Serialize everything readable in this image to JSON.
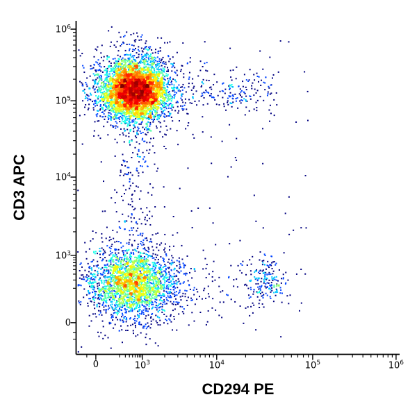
{
  "figure": {
    "background": "#ffffff",
    "title": ""
  },
  "chart_data": {
    "type": "scatter",
    "subtype": "flow-cytometry-pseudocolor-density-dot-plot",
    "title": "",
    "xlabel": "CD294 PE",
    "ylabel": "CD3 APC",
    "x_scale": "biexponential-log",
    "y_scale": "biexponential-log",
    "axis_tick_values": [
      0,
      1000,
      10000,
      100000,
      1000000
    ],
    "grid": false,
    "legend": false,
    "colormap": "jet-density (blue=low, red=high)",
    "x_ticks": [
      {
        "label_base": "0",
        "label_exp": "",
        "u": 0.06
      },
      {
        "label_base": "10",
        "label_exp": "3",
        "u": 0.204
      },
      {
        "label_base": "10",
        "label_exp": "4",
        "u": 0.434
      },
      {
        "label_base": "10",
        "label_exp": "5",
        "u": 0.731
      },
      {
        "label_base": "10",
        "label_exp": "6",
        "u": 0.989
      }
    ],
    "y_ticks": [
      {
        "label_base": "0",
        "label_exp": "",
        "u": 0.094
      },
      {
        "label_base": "10",
        "label_exp": "3",
        "u": 0.296
      },
      {
        "label_base": "10",
        "label_exp": "4",
        "u": 0.531
      },
      {
        "label_base": "10",
        "label_exp": "5",
        "u": 0.76
      },
      {
        "label_base": "10",
        "label_exp": "6",
        "u": 0.975
      }
    ],
    "seed": 7,
    "populations": [
      {
        "name": "CD3+ CD294- T-cell cluster (dense, red core)",
        "shape": "gauss",
        "ux": 0.183,
        "uy": 0.792,
        "sx": 0.05,
        "sy": 0.042,
        "n": 4500,
        "x_center_value": 800,
        "y_center_value": 140000
      },
      {
        "name": "CD3+ cluster sparse halo",
        "shape": "gauss",
        "ux": 0.183,
        "uy": 0.79,
        "sx": 0.088,
        "sy": 0.075,
        "n": 550
      },
      {
        "name": "CD3- CD294- cluster (dense, green-yellow core)",
        "shape": "gauss",
        "ux": 0.175,
        "uy": 0.212,
        "sx": 0.062,
        "sy": 0.05,
        "n": 2200,
        "x_center_value": 800,
        "y_center_value": 400
      },
      {
        "name": "CD3- cluster sparse halo",
        "shape": "gauss",
        "ux": 0.175,
        "uy": 0.215,
        "sx": 0.105,
        "sy": 0.085,
        "n": 380
      },
      {
        "name": "CD3- CD294+ cluster (basophil-like, sparse blue)",
        "shape": "gauss",
        "ux": 0.591,
        "uy": 0.219,
        "sx": 0.028,
        "sy": 0.034,
        "n": 180,
        "x_center_value": 33000,
        "y_center_value": 400
      },
      {
        "name": "vertical bridge between clusters",
        "shape": "band-v",
        "ux": 0.185,
        "sx": 0.032,
        "y0": 0.27,
        "y1": 0.73,
        "n": 170
      },
      {
        "name": "rightward spread of CD3+ cluster",
        "shape": "band-h",
        "uy": 0.785,
        "sy": 0.035,
        "x0": 0.26,
        "x1": 0.62,
        "n": 130
      },
      {
        "name": "loose CD3+ CD294+ group",
        "shape": "gauss",
        "ux": 0.5,
        "uy": 0.78,
        "sx": 0.048,
        "sy": 0.028,
        "n": 70
      },
      {
        "name": "rightward spread of CD3- cluster",
        "shape": "band-h",
        "uy": 0.21,
        "sy": 0.05,
        "x0": 0.28,
        "x1": 0.55,
        "n": 85
      },
      {
        "name": "zero-x column near CD3+ cluster",
        "shape": "gauss",
        "ux": 0.062,
        "uy": 0.79,
        "sx": 0.01,
        "sy": 0.06,
        "n": 30
      },
      {
        "name": "zero-x column near CD3- cluster",
        "shape": "gauss",
        "ux": 0.062,
        "uy": 0.21,
        "sx": 0.01,
        "sy": 0.06,
        "n": 30
      },
      {
        "name": "events above CD3+ cluster",
        "shape": "band-v",
        "ux": 0.19,
        "sx": 0.05,
        "y0": 0.86,
        "y1": 0.975,
        "n": 35
      },
      {
        "name": "background noise events",
        "shape": "uniform",
        "x0": 0.04,
        "x1": 0.72,
        "y0": 0.04,
        "y1": 0.97,
        "n": 120
      }
    ]
  }
}
